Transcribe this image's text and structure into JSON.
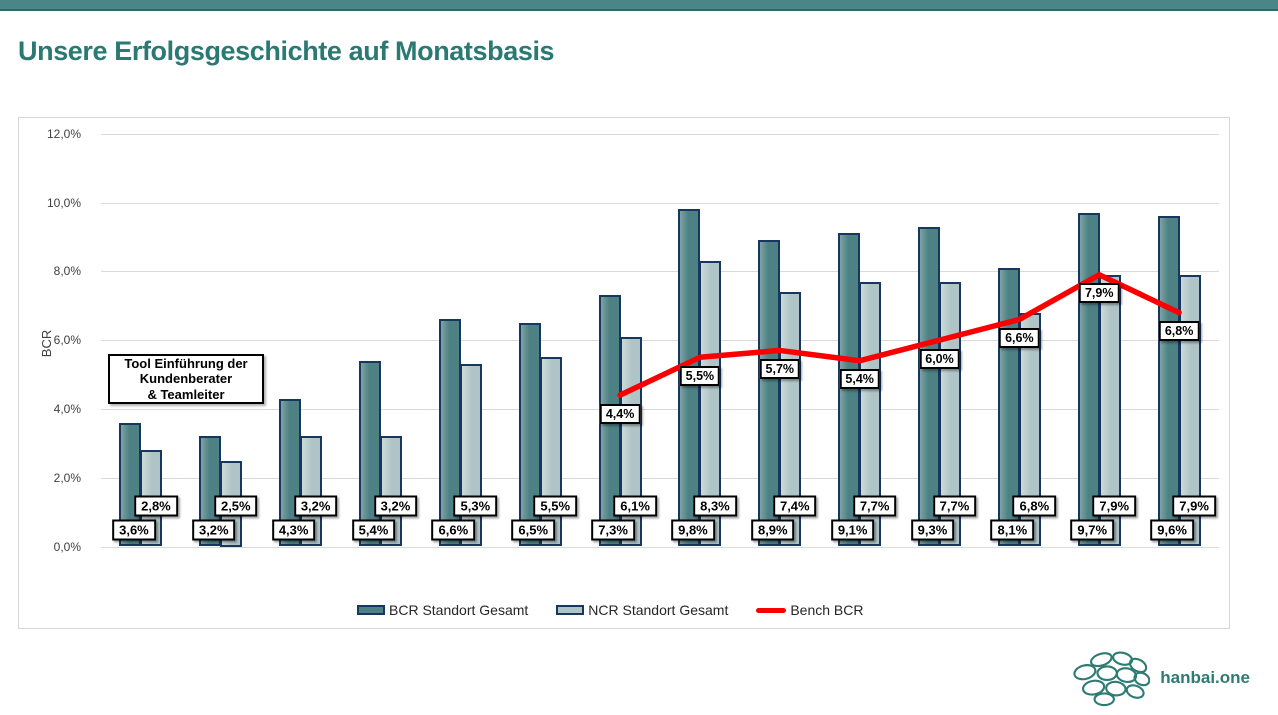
{
  "slide": {
    "title": "Unsere Erfolgsgeschichte auf Monatsbasis",
    "accent_color": "#2a7973",
    "top_bar_color": "#4a8587"
  },
  "chart_data": {
    "type": "bar",
    "num_categories": 14,
    "x_axis_labels": [],
    "ylabel": "BCR",
    "ylim": [
      0,
      12
    ],
    "ytick_labels": [
      "0,0%",
      "2,0%",
      "4,0%",
      "6,0%",
      "8,0%",
      "10,0%",
      "12,0%"
    ],
    "grid": true,
    "legend_position": "bottom",
    "series": [
      {
        "name": "BCR Standort Gesamt",
        "type": "bar",
        "color": "#4d8184",
        "border_color": "#17375e",
        "values": [
          3.6,
          3.2,
          4.3,
          5.4,
          6.6,
          6.5,
          7.3,
          9.8,
          8.9,
          9.1,
          9.3,
          8.1,
          9.7,
          9.6
        ],
        "labels": [
          "3,6%",
          "3,2%",
          "4,3%",
          "5,4%",
          "6,6%",
          "6,5%",
          "7,3%",
          "9,8%",
          "8,9%",
          "9,1%",
          "9,3%",
          "8,1%",
          "9,7%",
          "9,6%"
        ]
      },
      {
        "name": "NCR Standort Gesamt",
        "type": "bar",
        "color": "#afc4c6",
        "border_color": "#17375e",
        "values": [
          2.8,
          2.5,
          3.2,
          3.2,
          5.3,
          5.5,
          6.1,
          8.3,
          7.4,
          7.7,
          7.7,
          6.8,
          7.9,
          7.9
        ],
        "labels": [
          "2,8%",
          "2,5%",
          "3,2%",
          "3,2%",
          "5,3%",
          "5,5%",
          "6,1%",
          "8,3%",
          "7,4%",
          "7,7%",
          "7,7%",
          "6,8%",
          "7,9%",
          "7,9%"
        ]
      },
      {
        "name": "Bench BCR",
        "type": "line",
        "color": "#fb0000",
        "values": [
          null,
          null,
          null,
          null,
          null,
          null,
          4.4,
          5.5,
          5.7,
          5.4,
          6.0,
          6.6,
          7.9,
          6.8
        ],
        "labels": [
          null,
          null,
          null,
          null,
          null,
          null,
          "4,4%",
          "5,5%",
          "5,7%",
          "5,4%",
          "6,0%",
          "6,6%",
          "7,9%",
          "6,8%"
        ]
      }
    ],
    "annotation": {
      "line1": "Tool Einführung der",
      "line2": "Kundenberater",
      "line3": "& Teamleiter"
    }
  },
  "legend": {
    "bcr": "BCR Standort Gesamt",
    "ncr": "NCR Standort Gesamt",
    "bench": "Bench BCR"
  },
  "footer": {
    "logo_text": "hanbai.one"
  }
}
